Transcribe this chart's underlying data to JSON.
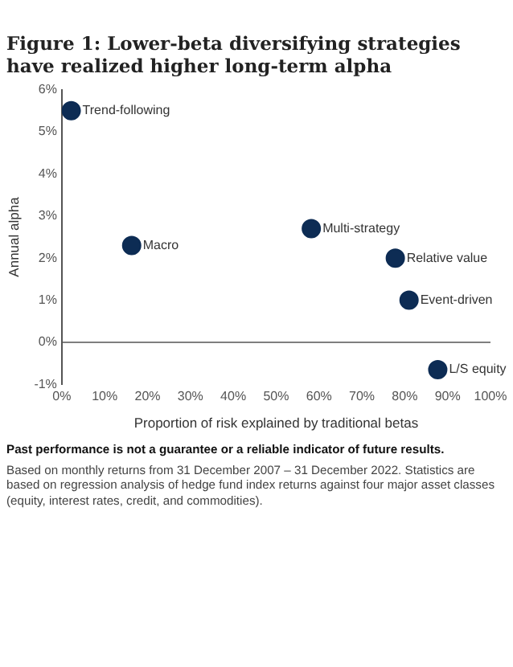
{
  "chart_data": {
    "type": "scatter",
    "title": "Figure 1: Lower-beta diversifying strategies have realized higher long-term alpha",
    "xlabel": "Proportion of risk explained by traditional betas",
    "ylabel": "Annual alpha",
    "x": [
      2.2,
      16.3,
      58.2,
      77.8,
      81,
      87.7
    ],
    "series": [
      {
        "color": "#0d2c54",
        "values": [
          5.5,
          2.3,
          2.7,
          2.0,
          1.0,
          -0.65
        ]
      }
    ],
    "marker": "circle",
    "xlim": [
      0,
      100
    ],
    "xticks": [
      {
        "value": 0,
        "label": "0%"
      },
      {
        "value": 10,
        "label": "10%"
      },
      {
        "value": 20,
        "label": "20%"
      },
      {
        "value": 30,
        "label": "30%"
      },
      {
        "value": 40,
        "label": "40%"
      },
      {
        "value": 50,
        "label": "50%"
      },
      {
        "value": 60,
        "label": "60%"
      },
      {
        "value": 70,
        "label": "70%"
      },
      {
        "value": 80,
        "label": "80%"
      },
      {
        "value": 90,
        "label": "90%"
      },
      {
        "value": 100,
        "label": "100%"
      }
    ],
    "ylim": [
      -1,
      6
    ],
    "yticks": [
      {
        "value": -1,
        "label": "-1%"
      },
      {
        "value": 0,
        "label": "0%"
      },
      {
        "value": 1,
        "label": "1%"
      },
      {
        "value": 2,
        "label": "2%"
      },
      {
        "value": 3,
        "label": "3%"
      },
      {
        "value": 4,
        "label": "4%"
      },
      {
        "value": 5,
        "label": "5%"
      },
      {
        "value": 6,
        "label": "6%"
      }
    ],
    "grid": false,
    "legend": false,
    "ref_lines": [
      {
        "axis": "y",
        "value": 0,
        "color": "#555555"
      }
    ],
    "annotations": [
      {
        "text": "Trend-following",
        "x": 2.2,
        "y": 5.5
      },
      {
        "text": "Macro",
        "x": 16.3,
        "y": 2.3
      },
      {
        "text": "Multi-strategy",
        "x": 58.2,
        "y": 2.7
      },
      {
        "text": "Relative value",
        "x": 77.8,
        "y": 2.0
      },
      {
        "text": "Event-driven",
        "x": 81,
        "y": 1.0
      },
      {
        "text": "L/S equity",
        "x": 87.7,
        "y": -0.65
      },
      "Past performance is not a guarantee or a reliable indicator of future results.",
      "Based on monthly returns from 31 December 2007 – 31 December 2022. Statistics are based on regression analysis of hedge fund index returns against four major asset classes (equity, interest rates, credit, and commodities)."
    ]
  }
}
